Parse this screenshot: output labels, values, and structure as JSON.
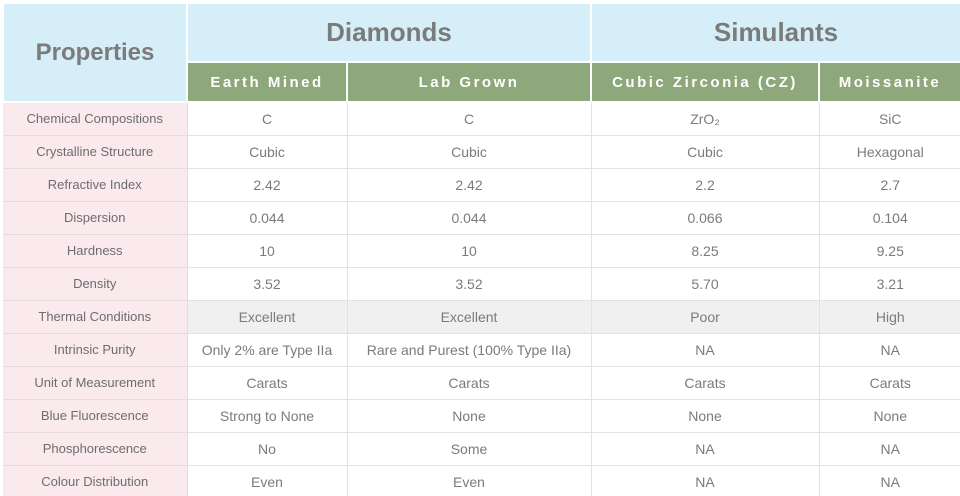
{
  "colors": {
    "header_blue": "#d5eef8",
    "header_green": "#8ea87b",
    "property_pink": "#fae9ed",
    "highlight_row_gray": "#f0f0f0",
    "header_text_gray": "#7b7b7b",
    "cell_text_gray": "#6d6d6d",
    "border_gray": "#e2e2e2"
  },
  "table": {
    "properties_header": "Properties",
    "groups": [
      {
        "label": "Diamonds",
        "columns": [
          "Earth Mined",
          "Lab Grown"
        ]
      },
      {
        "label": "Simulants",
        "columns": [
          "Cubic Zirconia (CZ)",
          "Moissanite"
        ]
      }
    ],
    "rows": [
      {
        "property": "Chemical Compositions",
        "values": [
          "C",
          "C",
          "ZrO₂",
          "SiC"
        ],
        "highlight": false
      },
      {
        "property": "Crystalline Structure",
        "values": [
          "Cubic",
          "Cubic",
          "Cubic",
          "Hexagonal"
        ],
        "highlight": false
      },
      {
        "property": "Refractive Index",
        "values": [
          "2.42",
          "2.42",
          "2.2",
          "2.7"
        ],
        "highlight": false
      },
      {
        "property": "Dispersion",
        "values": [
          "0.044",
          "0.044",
          "0.066",
          "0.104"
        ],
        "highlight": false
      },
      {
        "property": "Hardness",
        "values": [
          "10",
          "10",
          "8.25",
          "9.25"
        ],
        "highlight": false
      },
      {
        "property": "Density",
        "values": [
          "3.52",
          "3.52",
          "5.70",
          "3.21"
        ],
        "highlight": false
      },
      {
        "property": "Thermal Conditions",
        "values": [
          "Excellent",
          "Excellent",
          "Poor",
          "High"
        ],
        "highlight": true
      },
      {
        "property": "Intrinsic Purity",
        "values": [
          "Only 2% are Type IIa",
          "Rare and Purest (100% Type IIa)",
          "NA",
          "NA"
        ],
        "highlight": false
      },
      {
        "property": "Unit of Measurement",
        "values": [
          "Carats",
          "Carats",
          "Carats",
          "Carats"
        ],
        "highlight": false
      },
      {
        "property": "Blue Fluorescence",
        "values": [
          "Strong to None",
          "None",
          "None",
          "None"
        ],
        "highlight": false
      },
      {
        "property": "Phosphorescence",
        "values": [
          "No",
          "Some",
          "NA",
          "NA"
        ],
        "highlight": false
      },
      {
        "property": "Colour Distribution",
        "values": [
          "Even",
          "Even",
          "NA",
          "NA"
        ],
        "highlight": false
      }
    ]
  }
}
